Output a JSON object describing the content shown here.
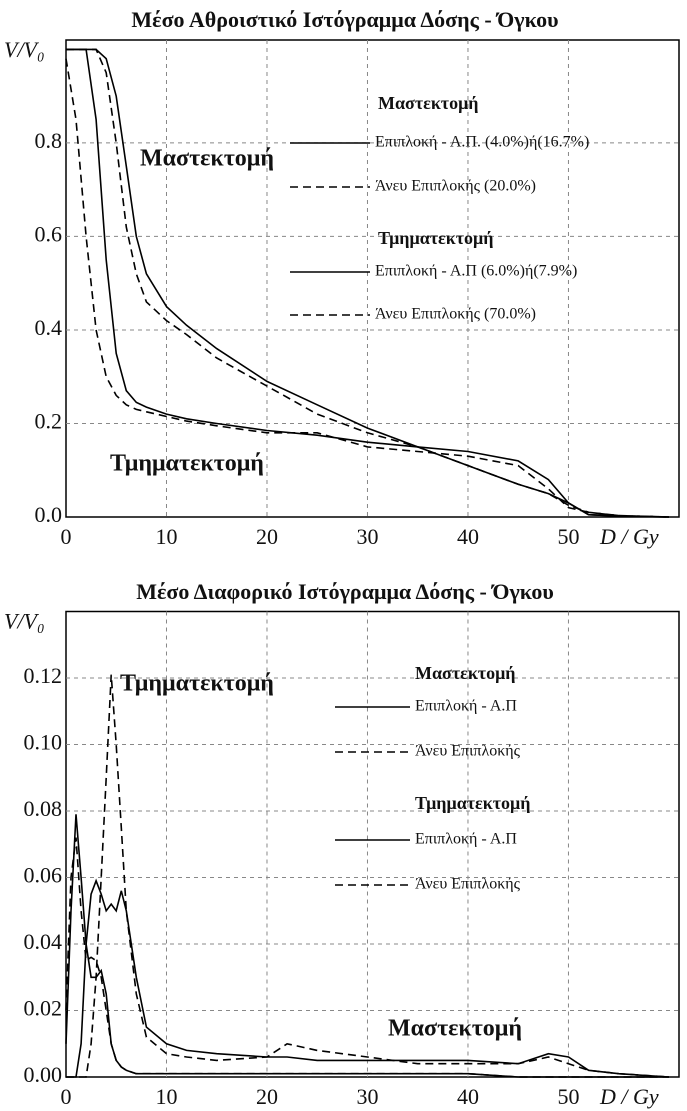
{
  "chart_data": [
    {
      "type": "line",
      "title": "Μέσο Αθροιστικό Ιστόγραμμα Δόσης - Όγκου",
      "y_label": "V/V₀",
      "x_label": "D / Gy",
      "xlim": [
        0,
        61
      ],
      "xticks": [
        0,
        10,
        20,
        30,
        40,
        50
      ],
      "ylim": [
        0,
        1.02
      ],
      "yticks": [
        {
          "value": 0,
          "label": "0.0"
        },
        0.2,
        0.4,
        0.6,
        0.8
      ],
      "grid": true,
      "annotations": [
        "Μαστεκτομή",
        "Τμηματεκτομή"
      ],
      "x": [
        0,
        1,
        2,
        3,
        4,
        5,
        6,
        7,
        8,
        10,
        12,
        15,
        20,
        25,
        30,
        35,
        40,
        45,
        48,
        50,
        52,
        55,
        60
      ],
      "series": [
        {
          "name": "Επιπλοκή - Α.Π. (4.0%)ή(16.7%)",
          "group": "Μαστεκτομή",
          "color": "#000000",
          "dashed": false,
          "values": [
            1,
            1,
            1,
            1,
            0.98,
            0.9,
            0.75,
            0.6,
            0.52,
            0.45,
            0.41,
            0.36,
            0.29,
            0.24,
            0.19,
            0.15,
            0.11,
            0.07,
            0.05,
            0.03,
            0.005,
            0.002,
            0
          ]
        },
        {
          "name": "Άνευ Επιπλοκής (20.0%)",
          "group": "Μαστεκτομή",
          "color": "#000000",
          "dashed": true,
          "values": [
            1,
            1,
            1,
            1,
            0.95,
            0.8,
            0.62,
            0.52,
            0.46,
            0.42,
            0.39,
            0.34,
            0.28,
            0.22,
            0.18,
            0.15,
            0.11,
            0.07,
            0.05,
            0.025,
            0.01,
            0.003,
            0
          ]
        },
        {
          "name": "Επιπλοκή - Α.Π (6.0%)ή(7.9%)",
          "group": "Τμηματεκτομή",
          "color": "#000000",
          "dashed": false,
          "values": [
            1,
            1,
            1,
            0.85,
            0.55,
            0.35,
            0.27,
            0.245,
            0.235,
            0.22,
            0.21,
            0.2,
            0.185,
            0.175,
            0.16,
            0.15,
            0.14,
            0.12,
            0.08,
            0.03,
            0.005,
            0.002,
            0
          ]
        },
        {
          "name": "Άνευ Επιπλοκής (70.0%)",
          "group": "Τμηματεκτομή",
          "color": "#000000",
          "dashed": true,
          "values": [
            0.98,
            0.85,
            0.6,
            0.4,
            0.3,
            0.26,
            0.24,
            0.23,
            0.225,
            0.215,
            0.205,
            0.195,
            0.18,
            0.18,
            0.15,
            0.14,
            0.13,
            0.11,
            0.06,
            0.02,
            0.01,
            0.003,
            0
          ]
        }
      ]
    },
    {
      "type": "line",
      "title": "Μέσο Διαφορικό Ιστόγραμμα Δόσης - Όγκου",
      "y_label": "V/V₀",
      "x_label": "D / Gy",
      "xlim": [
        0,
        61
      ],
      "xticks": [
        0,
        10,
        20,
        30,
        40,
        50
      ],
      "ylim": [
        0,
        0.14
      ],
      "yticks": [
        {
          "value": 0,
          "label": "0.00"
        },
        0.02,
        0.04,
        0.06,
        0.08,
        {
          "value": 0.1,
          "label": "0.10"
        },
        0.12
      ],
      "grid": true,
      "annotations": [
        "Τμηματεκτομή",
        "Μαστεκτομή"
      ],
      "x": [
        0,
        0.5,
        1,
        1.5,
        2,
        2.5,
        3,
        3.5,
        4,
        4.5,
        5,
        5.5,
        6,
        7,
        8,
        10,
        12,
        15,
        20,
        22,
        25,
        30,
        35,
        40,
        45,
        48,
        50,
        52,
        55,
        60
      ],
      "series": [
        {
          "name": "Επιπλοκή - Α.Π",
          "group": "Μαστεκτομή",
          "color": "#000000",
          "dashed": false,
          "values": [
            0,
            0,
            0,
            0.01,
            0.04,
            0.055,
            0.059,
            0.055,
            0.05,
            0.052,
            0.05,
            0.056,
            0.05,
            0.03,
            0.015,
            0.01,
            0.008,
            0.007,
            0.006,
            0.006,
            0.005,
            0.005,
            0.005,
            0.005,
            0.004,
            0.007,
            0.006,
            0.002,
            0.001,
            0
          ]
        },
        {
          "name": "Άνευ Επιπλοκής",
          "group": "Μαστεκτομή",
          "color": "#000000",
          "dashed": true,
          "values": [
            0,
            0,
            0,
            0,
            0,
            0.01,
            0.03,
            0.06,
            0.09,
            0.121,
            0.1,
            0.075,
            0.05,
            0.025,
            0.012,
            0.007,
            0.006,
            0.005,
            0.006,
            0.01,
            0.008,
            0.006,
            0.004,
            0.004,
            0.004,
            0.006,
            0.004,
            0.002,
            0.001,
            0
          ]
        },
        {
          "name": "Επιπλοκή - Α.Π",
          "group": "Τμηματεκτομή",
          "color": "#000000",
          "dashed": false,
          "values": [
            0.01,
            0.05,
            0.079,
            0.06,
            0.04,
            0.03,
            0.03,
            0.032,
            0.025,
            0.01,
            0.005,
            0.003,
            0.002,
            0.001,
            0.001,
            0.001,
            0.001,
            0.001,
            0.001,
            0.001,
            0.001,
            0.001,
            0.001,
            0.001,
            0,
            0,
            0,
            0,
            0,
            0
          ]
        },
        {
          "name": "Άνευ Επιπλοκής",
          "group": "Τμηματεκτομή",
          "color": "#000000",
          "dashed": true,
          "values": [
            0.02,
            0.06,
            0.072,
            0.05,
            0.035,
            0.036,
            0.035,
            0.03,
            0.02,
            0.01,
            0.005,
            0.003,
            0.002,
            0.001,
            0.001,
            0.001,
            0.001,
            0.001,
            0.001,
            0.001,
            0.001,
            0.001,
            0.001,
            0.001,
            0,
            0,
            0,
            0,
            0,
            0
          ]
        }
      ]
    }
  ]
}
